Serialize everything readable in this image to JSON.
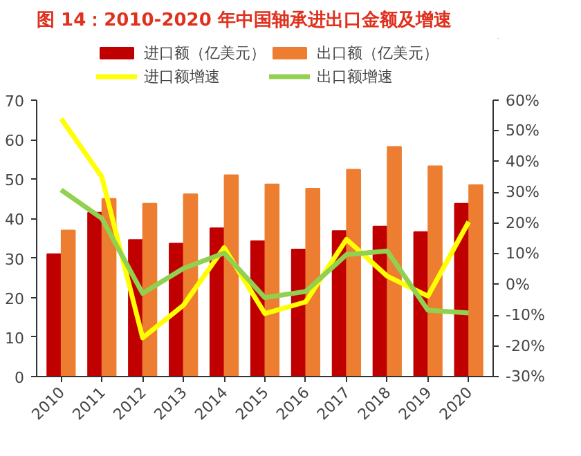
{
  "chart_data": {
    "type": "bar",
    "title": "图 14：2010-2020 年中国轴承进出口金额及增速",
    "categories": [
      "2010",
      "2011",
      "2012",
      "2013",
      "2014",
      "2015",
      "2016",
      "2017",
      "2018",
      "2019",
      "2020"
    ],
    "series": [
      {
        "name": "进口额（亿美元）",
        "color": "#c00000",
        "values": [
          31,
          41.5,
          34.6,
          33.7,
          37.6,
          34.3,
          32.2,
          36.9,
          38,
          36.6,
          43.8
        ]
      },
      {
        "name": "出口额（亿美元）",
        "color": "#ed7d31",
        "values": [
          37,
          45,
          43.8,
          46.2,
          51,
          48.7,
          47.6,
          52.4,
          58.2,
          53.3,
          48.5
        ]
      },
      {
        "name": "进口额增速",
        "type": "line",
        "axis": "y2",
        "color": "#ffff00",
        "values": [
          54,
          35,
          -17.4,
          -6.8,
          12,
          -9.5,
          -5.7,
          14.7,
          2.7,
          -3.8,
          20.4
        ]
      },
      {
        "name": "出口额增速",
        "type": "line",
        "axis": "y2",
        "color": "#92d050",
        "values": [
          30.8,
          21.5,
          -2.9,
          5.2,
          10.2,
          -4.3,
          -2.3,
          9.7,
          10.9,
          -8.4,
          -9.3
        ]
      }
    ],
    "ylim": [
      0,
      70
    ],
    "yticks": [
      0,
      10,
      20,
      30,
      40,
      50,
      60,
      70
    ],
    "y2lim": [
      -30,
      60
    ],
    "y2ticks": [
      {
        "value": -30,
        "label": "-30%"
      },
      {
        "value": -20,
        "label": "-20%"
      },
      {
        "value": -10,
        "label": "-10%"
      },
      {
        "value": 0,
        "label": "0%"
      },
      {
        "value": 10,
        "label": "10%"
      },
      {
        "value": 20,
        "label": "20%"
      },
      {
        "value": 30,
        "label": "30%"
      },
      {
        "value": 40,
        "label": "40%"
      },
      {
        "value": 50,
        "label": "50%"
      },
      {
        "value": 60,
        "label": "60%"
      }
    ],
    "legend": "top",
    "grid": false
  }
}
